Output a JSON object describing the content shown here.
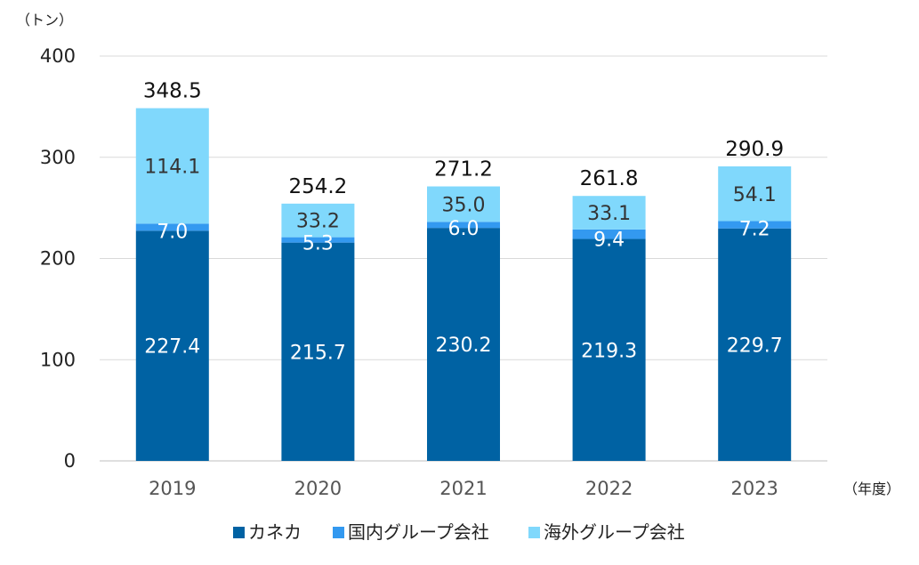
{
  "chart_data": {
    "type": "bar",
    "stacked": true,
    "y_unit": "（トン）",
    "x_unit": "（年度）",
    "categories": [
      "2019",
      "2020",
      "2021",
      "2022",
      "2023"
    ],
    "ylim": [
      0,
      400
    ],
    "yticks": [
      "0",
      "100",
      "200",
      "300",
      "400"
    ],
    "grid": true,
    "legend_position": "bottom",
    "series": [
      {
        "name": "カネカ",
        "color": "#0062A3",
        "label_color": "#ffffff",
        "values": [
          227.4,
          215.7,
          230.2,
          219.3,
          229.7
        ],
        "labels": [
          "227.4",
          "215.7",
          "230.2",
          "219.3",
          "229.7"
        ]
      },
      {
        "name": "国内グループ会社",
        "color": "#3399F0",
        "label_color": "#ffffff",
        "values": [
          7.0,
          5.3,
          6.0,
          9.4,
          7.2
        ],
        "labels": [
          "7.0",
          "5.3",
          "6.0",
          "9.4",
          "7.2"
        ]
      },
      {
        "name": "海外グループ会社",
        "color": "#80D8FC",
        "label_color": "#333333",
        "values": [
          114.1,
          33.2,
          35.0,
          33.1,
          54.1
        ],
        "labels": [
          "114.1",
          "33.2",
          "35.0",
          "33.1",
          "54.1"
        ]
      }
    ],
    "totals": [
      "348.5",
      "254.2",
      "271.2",
      "261.8",
      "290.9"
    ]
  }
}
